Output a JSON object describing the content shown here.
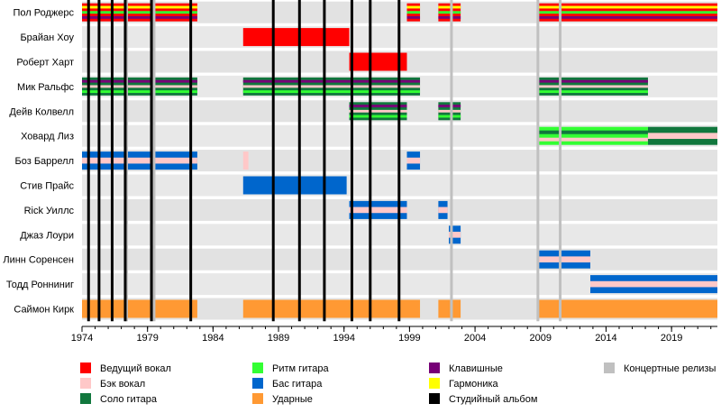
{
  "chart_data": {
    "type": "timeline",
    "x_range": [
      1974,
      2022.5
    ],
    "x_ticks": [
      1974,
      1979,
      1984,
      1989,
      1994,
      1999,
      2004,
      2009,
      2014,
      2019
    ],
    "members": [
      {
        "name": "Пол Роджерс",
        "bands": [
          {
            "start": 1974,
            "end": 1982.8,
            "roles": [
              "lead_vocals",
              "harmonica",
              "rhythm_guitar",
              "keyboards"
            ]
          },
          {
            "start": 1998.8,
            "end": 1999.8,
            "roles": [
              "lead_vocals",
              "harmonica",
              "rhythm_guitar",
              "keyboards"
            ]
          },
          {
            "start": 2001.2,
            "end": 2002.9,
            "roles": [
              "lead_vocals",
              "harmonica",
              "rhythm_guitar",
              "keyboards"
            ]
          },
          {
            "start": 2008.8,
            "end": 2022.5,
            "roles": [
              "lead_vocals",
              "harmonica",
              "rhythm_guitar",
              "keyboards"
            ]
          }
        ]
      },
      {
        "name": "Брайан Хоу",
        "bands": [
          {
            "start": 1986.3,
            "end": 1994.4,
            "roles": [
              "lead_vocals"
            ]
          }
        ]
      },
      {
        "name": "Роберт Харт",
        "bands": [
          {
            "start": 1994.4,
            "end": 1998.8,
            "roles": [
              "lead_vocals"
            ]
          }
        ]
      },
      {
        "name": "Мик Ральфс",
        "bands": [
          {
            "start": 1974,
            "end": 1982.8,
            "roles": [
              "lead_guitar",
              "keyboards",
              "backing_vocals",
              "rhythm_guitar"
            ]
          },
          {
            "start": 1986.3,
            "end": 1999.8,
            "roles": [
              "lead_guitar",
              "keyboards",
              "backing_vocals",
              "rhythm_guitar"
            ]
          },
          {
            "start": 2008.8,
            "end": 2017.2,
            "roles": [
              "lead_guitar",
              "keyboards",
              "backing_vocals",
              "rhythm_guitar"
            ]
          }
        ]
      },
      {
        "name": "Дейв Колвелл",
        "bands": [
          {
            "start": 1994.4,
            "end": 1998.8,
            "roles": [
              "lead_guitar",
              "keyboards",
              "backing_vocals",
              "rhythm_guitar"
            ]
          },
          {
            "start": 2001.2,
            "end": 2002.9,
            "roles": [
              "lead_guitar",
              "keyboards",
              "backing_vocals",
              "rhythm_guitar"
            ]
          }
        ]
      },
      {
        "name": "Ховард Лиз",
        "bands": [
          {
            "start": 2008.8,
            "end": 2017.2,
            "roles": [
              "rhythm_guitar",
              "lead_guitar",
              "backing_vocals"
            ]
          },
          {
            "start": 2017.2,
            "end": 2022.5,
            "roles": [
              "lead_guitar",
              "backing_vocals"
            ]
          }
        ]
      },
      {
        "name": "Боз Баррелл",
        "bands": [
          {
            "start": 1974,
            "end": 1982.8,
            "roles": [
              "bass",
              "backing_vocals"
            ]
          },
          {
            "start": 1986.3,
            "end": 1986.7,
            "roles": [
              "backing_vocals"
            ]
          },
          {
            "start": 1998.8,
            "end": 1999.8,
            "roles": [
              "bass",
              "backing_vocals"
            ]
          }
        ]
      },
      {
        "name": "Стив Прайс",
        "bands": [
          {
            "start": 1986.3,
            "end": 1994.2,
            "roles": [
              "bass"
            ]
          }
        ]
      },
      {
        "name": "Rick Уиллс",
        "bands": [
          {
            "start": 1994.4,
            "end": 1998.8,
            "roles": [
              "bass",
              "backing_vocals"
            ]
          },
          {
            "start": 2001.2,
            "end": 2001.9,
            "roles": [
              "bass",
              "backing_vocals"
            ]
          }
        ]
      },
      {
        "name": "Джаз Лоури",
        "bands": [
          {
            "start": 2002.0,
            "end": 2002.9,
            "roles": [
              "bass",
              "backing_vocals"
            ]
          }
        ]
      },
      {
        "name": "Линн Соренсен",
        "bands": [
          {
            "start": 2008.8,
            "end": 2012.8,
            "roles": [
              "bass",
              "backing_vocals"
            ]
          }
        ]
      },
      {
        "name": "Тодд Ронниниг",
        "bands": [
          {
            "start": 2012.8,
            "end": 2022.5,
            "roles": [
              "bass",
              "backing_vocals"
            ]
          }
        ]
      },
      {
        "name": "Саймон Кирк",
        "bands": [
          {
            "start": 1974,
            "end": 1982.8,
            "roles": [
              "drums"
            ]
          },
          {
            "start": 1986.3,
            "end": 1999.8,
            "roles": [
              "drums"
            ]
          },
          {
            "start": 2001.2,
            "end": 2002.9,
            "roles": [
              "drums"
            ]
          },
          {
            "start": 2008.8,
            "end": 2022.5,
            "roles": [
              "drums"
            ]
          }
        ]
      }
    ],
    "studio_albums": [
      1974.5,
      1975.3,
      1976.3,
      1977.3,
      1979.3,
      1982.3,
      1988.6,
      1990.6,
      1992.5,
      1994.6,
      1996.0,
      1998.2
    ],
    "live_releases": [
      1977.4,
      1979.5,
      2002.2,
      2008.8,
      2010.5
    ],
    "legend": [
      {
        "key": "lead_vocals",
        "label": "Ведущий вокал",
        "color": "#ff0000"
      },
      {
        "key": "backing_vocals",
        "label": "Бэк вокал",
        "color": "#ffc8c8"
      },
      {
        "key": "lead_guitar",
        "label": "Соло гитара",
        "color": "#11773d"
      },
      {
        "key": "rhythm_guitar",
        "label": "Ритм гитара",
        "color": "#33ff33"
      },
      {
        "key": "bass",
        "label": "Бас гитара",
        "color": "#0066cc"
      },
      {
        "key": "drums",
        "label": "Ударные",
        "color": "#ff9933"
      },
      {
        "key": "keyboards",
        "label": "Клавишные",
        "color": "#770077"
      },
      {
        "key": "harmonica",
        "label": "Гармоника",
        "color": "#ffff00"
      },
      {
        "key": "studio_album",
        "label": "Студийный альбом",
        "color": "#000000"
      },
      {
        "key": "live_release",
        "label": "Концертные релизы",
        "color": "#c0c0c0"
      }
    ]
  }
}
